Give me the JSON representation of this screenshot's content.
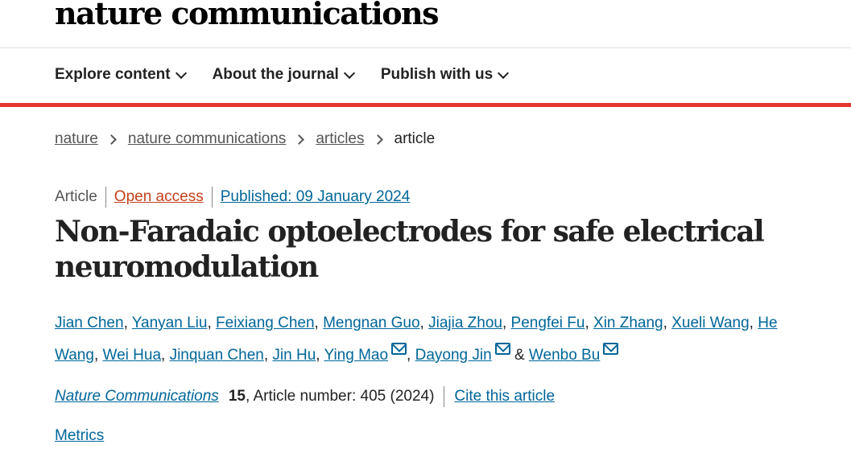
{
  "header": {
    "logo": "nature communications"
  },
  "nav": [
    {
      "label": "Explore content"
    },
    {
      "label": "About the journal"
    },
    {
      "label": "Publish with us"
    }
  ],
  "breadcrumb": [
    "nature",
    "nature communications",
    "articles",
    "article"
  ],
  "meta": {
    "type": "Article",
    "access": "Open access",
    "published": "Published: 09 January 2024"
  },
  "title": "Non-Faradaic optoelectrodes for safe electrical neuromodulation",
  "authors": [
    {
      "name": "Jian Chen",
      "mail": false
    },
    {
      "name": "Yanyan Liu",
      "mail": false
    },
    {
      "name": "Feixiang Chen",
      "mail": false
    },
    {
      "name": "Mengnan Guo",
      "mail": false
    },
    {
      "name": "Jiajia Zhou",
      "mail": false
    },
    {
      "name": "Pengfei Fu",
      "mail": false
    },
    {
      "name": "Xin Zhang",
      "mail": false
    },
    {
      "name": "Xueli Wang",
      "mail": false
    },
    {
      "name": "He Wang",
      "mail": false
    },
    {
      "name": "Wei Hua",
      "mail": false
    },
    {
      "name": "Jinquan Chen",
      "mail": false
    },
    {
      "name": "Jin Hu",
      "mail": false
    },
    {
      "name": "Ying Mao",
      "mail": true
    },
    {
      "name": "Dayong Jin",
      "mail": true
    },
    {
      "name": "Wenbo Bu",
      "mail": true
    }
  ],
  "authors_and": "&",
  "citation": {
    "journal": "Nature Communications",
    "volume": "15",
    "rest": ", Article number: 405 (2024)",
    "cite_label": "Cite this article"
  },
  "metrics_label": "Metrics",
  "colors": {
    "accent_bar": "#e5352c",
    "link": "#006699",
    "open_access": "#c4401a"
  }
}
